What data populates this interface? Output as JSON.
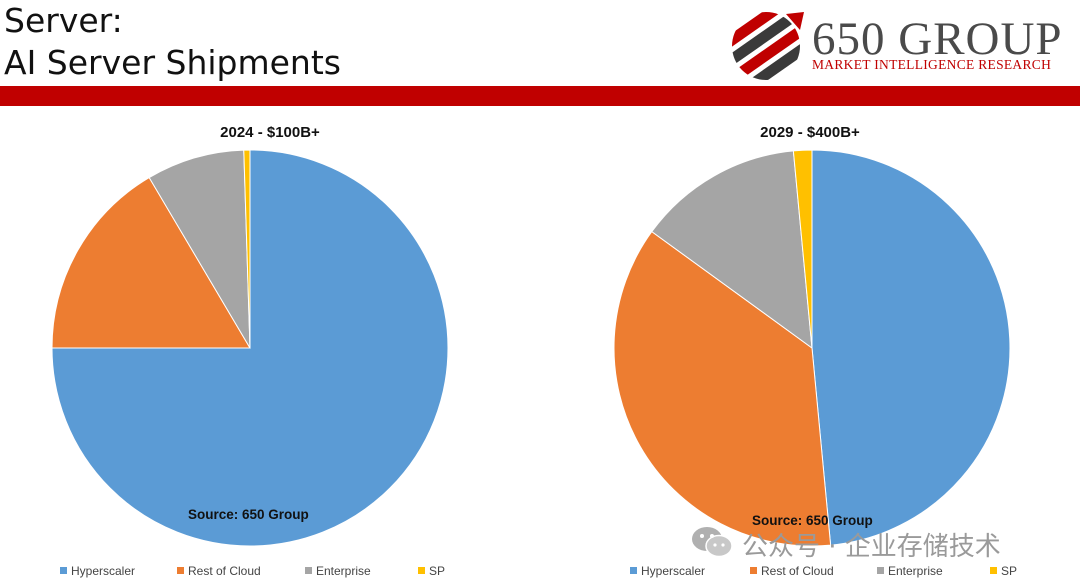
{
  "header": {
    "title_line1": "Server:",
    "title_line2": "AI Server Shipments"
  },
  "logo": {
    "name": "650 GROUP",
    "tagline": "MARKET INTELLIGENCE RESEARCH"
  },
  "watermark": {
    "text": "公众号 · 企业存储技术"
  },
  "colors": {
    "accent_bar": "#c00000",
    "Hyperscaler": "#5b9bd5",
    "Rest of Cloud": "#ed7d31",
    "Enterprise": "#a5a5a5",
    "SP": "#ffc000"
  },
  "chart_data": [
    {
      "type": "pie",
      "title": "2024 - $100B+",
      "source": "Source: 650 Group",
      "categories": [
        "Hyperscaler",
        "Rest of Cloud",
        "Enterprise",
        "SP"
      ],
      "values": [
        75.0,
        16.5,
        8.0,
        0.5
      ],
      "legend_position": "bottom"
    },
    {
      "type": "pie",
      "title": "2029 - $400B+",
      "source": "Source: 650 Group",
      "categories": [
        "Hyperscaler",
        "Rest of Cloud",
        "Enterprise",
        "SP"
      ],
      "values": [
        48.5,
        36.5,
        13.5,
        1.5
      ],
      "legend_position": "bottom"
    }
  ]
}
